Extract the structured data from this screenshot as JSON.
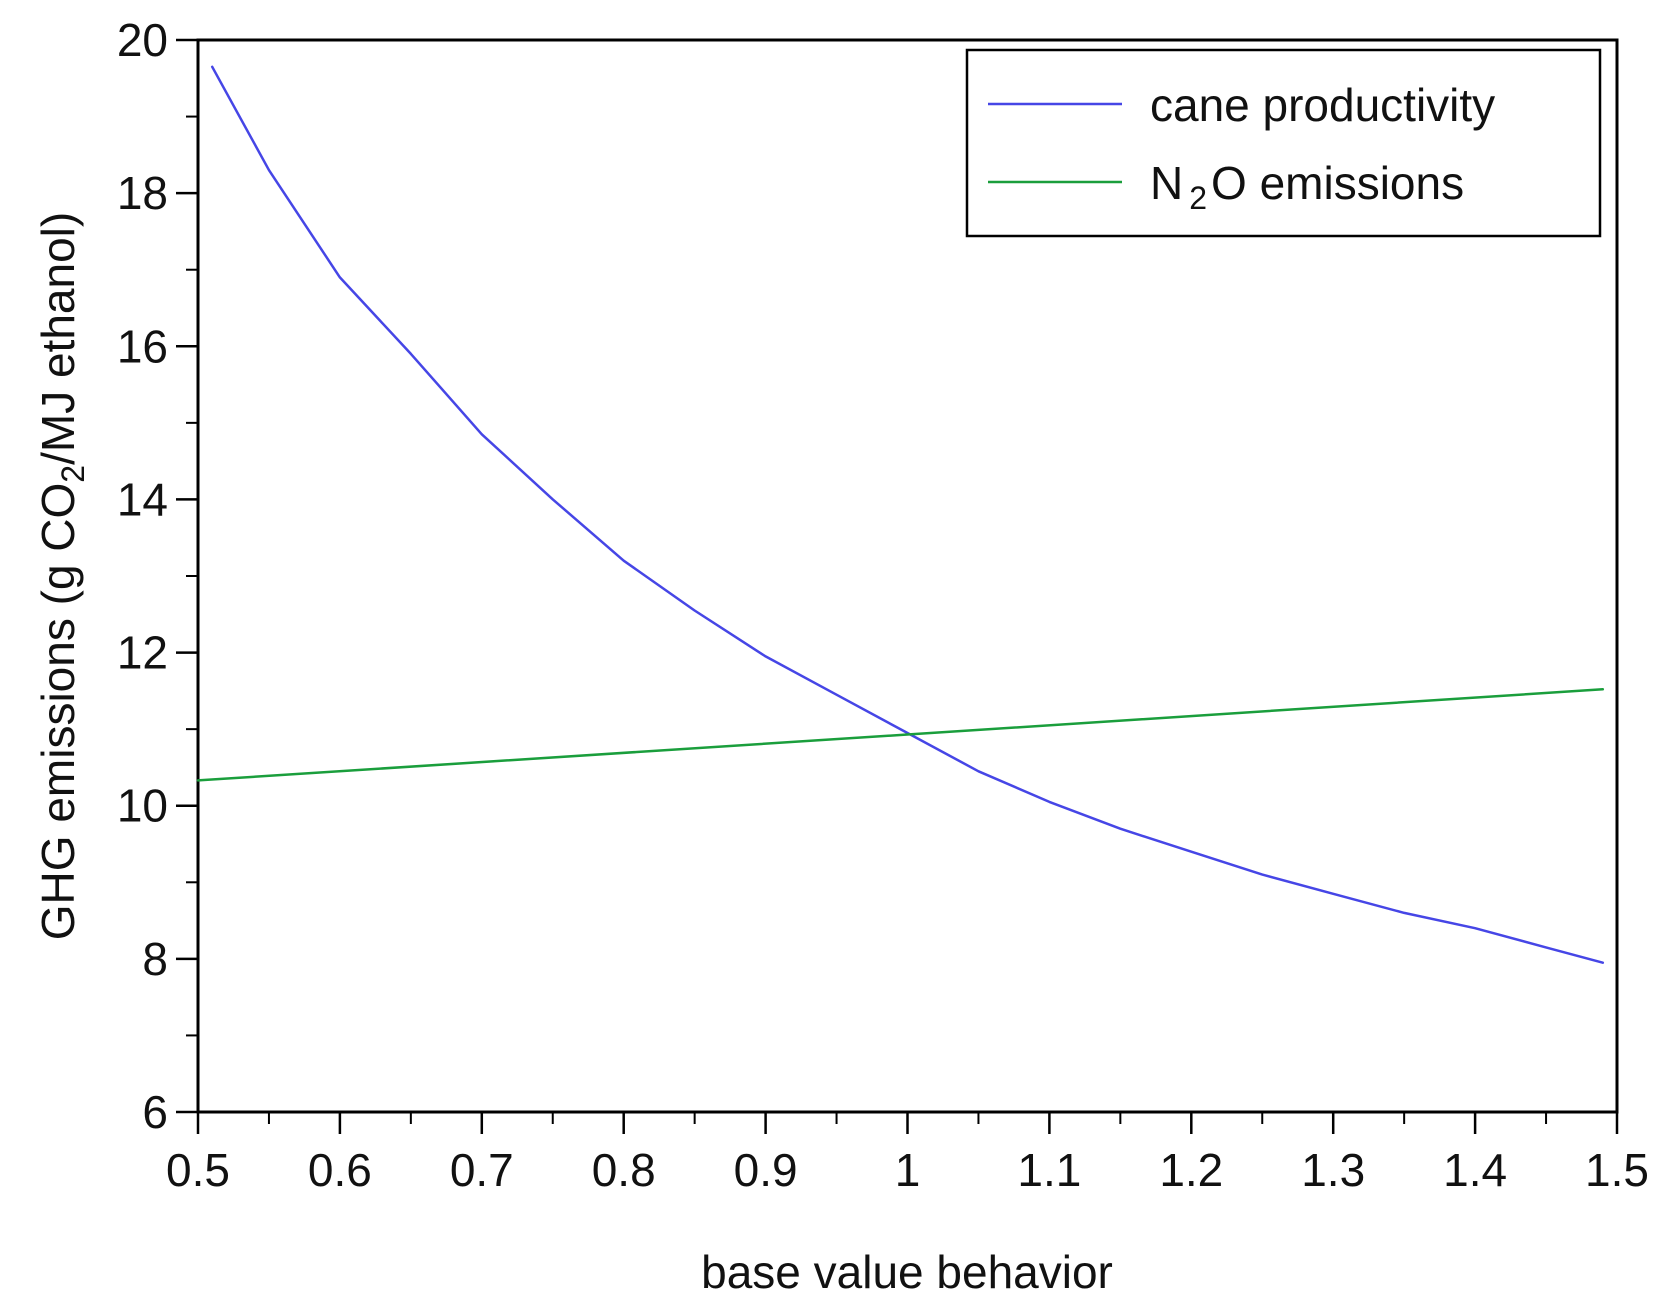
{
  "chart_data": {
    "type": "line",
    "title": "",
    "xlabel": "base value behavior",
    "ylabel": {
      "pre": "GHG emissions  (g CO",
      "sub": "2",
      "post": "/MJ ethanol)"
    },
    "xlim": [
      0.5,
      1.5
    ],
    "ylim": [
      6,
      20
    ],
    "xticks": [
      "0.5",
      "0.6",
      "0.7",
      "0.8",
      "0.9",
      "1",
      "1.1",
      "1.2",
      "1.3",
      "1.4",
      "1.5"
    ],
    "yticks": [
      "6",
      "8",
      "10",
      "12",
      "14",
      "16",
      "18",
      "20"
    ],
    "grid": false,
    "legend_position": "top-right",
    "series": [
      {
        "name": "cane productivity",
        "legend": {
          "pre": "cane productivity",
          "sub": "",
          "post": ""
        },
        "color": "#4646e6",
        "x": [
          0.51,
          0.55,
          0.6,
          0.65,
          0.7,
          0.75,
          0.8,
          0.85,
          0.9,
          0.95,
          1.0,
          1.05,
          1.1,
          1.15,
          1.2,
          1.25,
          1.3,
          1.35,
          1.4,
          1.45,
          1.49
        ],
        "y": [
          19.65,
          18.3,
          16.9,
          15.9,
          14.85,
          14.0,
          13.2,
          12.55,
          11.95,
          11.45,
          10.95,
          10.45,
          10.05,
          9.7,
          9.4,
          9.1,
          8.85,
          8.6,
          8.4,
          8.15,
          7.95
        ]
      },
      {
        "name": "N2O emissions",
        "legend": {
          "pre": "N",
          "sub": "2",
          "post": "O emissions"
        },
        "color": "#1a9e3c",
        "x": [
          0.5,
          1.0,
          1.49
        ],
        "y": [
          10.33,
          10.93,
          11.52
        ]
      }
    ]
  }
}
